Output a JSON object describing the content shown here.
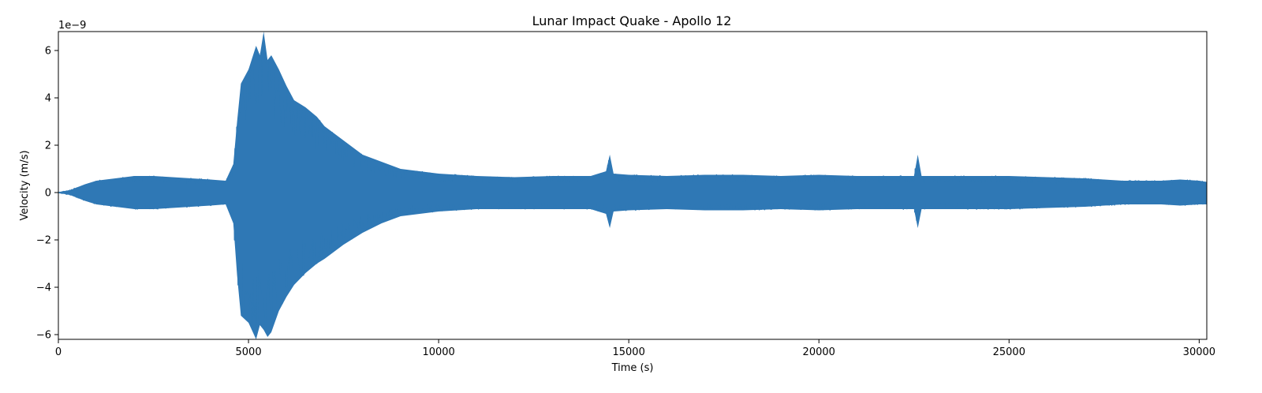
{
  "chart_data": {
    "type": "line",
    "title": "Lunar Impact Quake - Apollo 12",
    "xlabel": "Time (s)",
    "ylabel": "Velocity (m/s)",
    "y_offset_label": "1e−9",
    "y_scale": 1e-09,
    "xlim": [
      0,
      30200
    ],
    "ylim": [
      -6.2,
      6.8
    ],
    "x_ticks": [
      0,
      5000,
      10000,
      15000,
      20000,
      25000,
      30000
    ],
    "x_tick_labels": [
      "0",
      "5000",
      "10000",
      "15000",
      "20000",
      "25000",
      "30000"
    ],
    "y_ticks": [
      -6,
      -4,
      -2,
      0,
      2,
      4,
      6
    ],
    "y_tick_labels": [
      "−6",
      "−4",
      "−2",
      "0",
      "2",
      "4",
      "6"
    ],
    "grid": false,
    "series": [
      {
        "color": "#2f78b5",
        "x": [
          0,
          300,
          700,
          1000,
          1500,
          2000,
          2500,
          3000,
          3500,
          4000,
          4400,
          4600,
          4700,
          4800,
          5000,
          5200,
          5300,
          5400,
          5500,
          5600,
          5800,
          6000,
          6200,
          6500,
          6800,
          7000,
          7500,
          8000,
          8500,
          9000,
          9500,
          10000,
          11000,
          12000,
          13000,
          14000,
          14400,
          14500,
          14600,
          15000,
          16000,
          17000,
          18000,
          19000,
          20000,
          21000,
          22000,
          22500,
          22600,
          22700,
          23000,
          24000,
          25000,
          26000,
          27000,
          27500,
          28000,
          28500,
          29000,
          29500,
          30000,
          30200
        ],
        "upper": [
          0.0,
          0.1,
          0.35,
          0.5,
          0.6,
          0.7,
          0.7,
          0.65,
          0.6,
          0.55,
          0.5,
          1.2,
          3.0,
          4.6,
          5.2,
          6.2,
          5.8,
          6.8,
          5.6,
          5.8,
          5.2,
          4.5,
          3.9,
          3.6,
          3.2,
          2.8,
          2.2,
          1.6,
          1.3,
          1.0,
          0.9,
          0.8,
          0.7,
          0.65,
          0.7,
          0.7,
          0.9,
          1.6,
          0.8,
          0.75,
          0.7,
          0.75,
          0.75,
          0.7,
          0.75,
          0.7,
          0.7,
          0.7,
          1.6,
          0.7,
          0.7,
          0.7,
          0.7,
          0.65,
          0.6,
          0.55,
          0.5,
          0.5,
          0.5,
          0.55,
          0.5,
          0.45
        ],
        "lower": [
          0.0,
          -0.1,
          -0.35,
          -0.5,
          -0.6,
          -0.7,
          -0.7,
          -0.65,
          -0.6,
          -0.55,
          -0.5,
          -1.3,
          -3.5,
          -5.2,
          -5.5,
          -6.2,
          -5.6,
          -5.8,
          -6.1,
          -5.9,
          -5.0,
          -4.4,
          -3.9,
          -3.4,
          -3.0,
          -2.8,
          -2.2,
          -1.7,
          -1.3,
          -1.0,
          -0.9,
          -0.8,
          -0.7,
          -0.7,
          -0.7,
          -0.7,
          -0.9,
          -1.5,
          -0.8,
          -0.75,
          -0.7,
          -0.75,
          -0.75,
          -0.7,
          -0.75,
          -0.7,
          -0.7,
          -0.7,
          -1.5,
          -0.7,
          -0.7,
          -0.7,
          -0.7,
          -0.65,
          -0.6,
          -0.55,
          -0.5,
          -0.5,
          -0.5,
          -0.55,
          -0.5,
          -0.5
        ]
      }
    ]
  }
}
